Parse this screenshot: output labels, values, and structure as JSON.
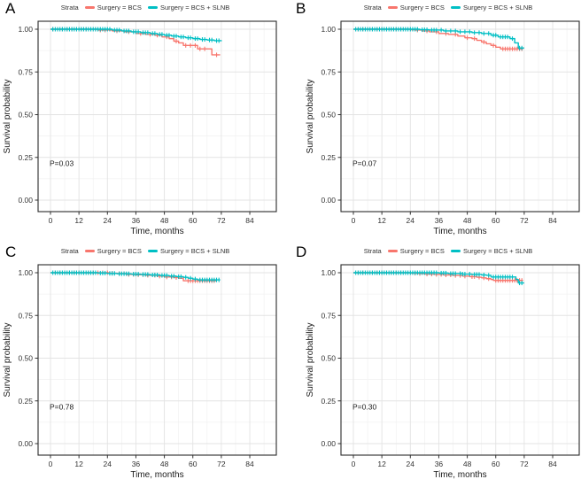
{
  "figure": {
    "background": "#ffffff"
  },
  "colors": {
    "bcs": "#F8766D",
    "slnb": "#00BFC4",
    "grid_major": "#E3E3E3",
    "grid_minor": "#F1F1F1",
    "panel_border": "#2A2A2A",
    "axis_text": "#333333",
    "title_text": "#1A1A1A"
  },
  "legend": {
    "strata_label": "Strata",
    "series": [
      {
        "label": "Surgery = BCS",
        "color": "#F8766D"
      },
      {
        "label": "Surgery = BCS + SLNB",
        "color": "#00BFC4"
      }
    ]
  },
  "axes": {
    "x_label": "Time, months",
    "y_label": "Survival probability",
    "x_ticks": [
      0,
      12,
      24,
      36,
      48,
      60,
      72,
      84
    ],
    "x_minor": [
      6,
      18,
      30,
      42,
      54,
      66,
      78,
      90
    ],
    "y_ticks": [
      {
        "label": "0.00",
        "value": 0.0
      },
      {
        "label": "0.25",
        "value": 0.25
      },
      {
        "label": "0.50",
        "value": 0.5
      },
      {
        "label": "0.75",
        "value": 0.75
      },
      {
        "label": "1.00",
        "value": 1.0
      }
    ],
    "y_minor": [
      0.125,
      0.375,
      0.625,
      0.875
    ],
    "x_range": [
      0,
      84
    ],
    "y_range": [
      0,
      1
    ],
    "grid": true,
    "legend_position": "top"
  },
  "chart_data": [
    {
      "type": "line",
      "panel": "A",
      "p_value": "P=0.03",
      "xlabel": "Time, months",
      "ylabel": "Survival probability",
      "xlim": [
        0,
        84
      ],
      "ylim": [
        0,
        1
      ],
      "series": [
        {
          "name": "Surgery = BCS",
          "color": "#F8766D",
          "x": [
            0,
            20,
            26,
            31,
            36,
            40,
            44,
            47,
            50,
            52,
            54,
            56,
            62,
            68,
            71.5
          ],
          "y": [
            1.0,
            0.995,
            0.99,
            0.985,
            0.975,
            0.97,
            0.965,
            0.955,
            0.945,
            0.93,
            0.92,
            0.905,
            0.885,
            0.85,
            0.85
          ],
          "censor_x": [
            1,
            3,
            5,
            7,
            9,
            11,
            13,
            15,
            17,
            19,
            21,
            23,
            28,
            33,
            38,
            42,
            45,
            49,
            53,
            57,
            59,
            61,
            63,
            65,
            70
          ]
        },
        {
          "name": "Surgery = BCS + SLNB",
          "color": "#00BFC4",
          "x": [
            0,
            26,
            30,
            34,
            38,
            42,
            45,
            48,
            51,
            54,
            57,
            60,
            63,
            66,
            69,
            72
          ],
          "y": [
            1.0,
            0.995,
            0.99,
            0.985,
            0.98,
            0.975,
            0.97,
            0.965,
            0.96,
            0.955,
            0.95,
            0.945,
            0.94,
            0.937,
            0.933,
            0.93
          ],
          "censor_x": [
            1,
            2,
            3,
            4,
            5,
            6,
            7,
            8,
            9,
            10,
            11,
            12,
            13,
            14,
            15,
            16,
            17,
            18,
            19,
            20,
            21,
            22,
            23,
            24,
            25,
            27,
            28,
            29,
            31,
            32,
            33,
            35,
            36,
            37,
            39,
            40,
            41,
            43,
            44,
            46,
            47,
            49,
            50,
            52,
            53,
            55,
            56,
            58,
            59,
            61,
            62,
            64,
            65,
            67,
            68,
            70,
            71
          ]
        }
      ]
    },
    {
      "type": "line",
      "panel": "B",
      "p_value": "P=0.07",
      "xlabel": "Time, months",
      "ylabel": "Survival probability",
      "xlim": [
        0,
        84
      ],
      "ylim": [
        0,
        1
      ],
      "series": [
        {
          "name": "Surgery = BCS",
          "color": "#F8766D",
          "x": [
            0,
            24,
            26,
            29,
            32,
            36,
            40,
            44,
            47,
            50,
            52,
            54,
            56,
            58,
            60,
            62,
            71.5
          ],
          "y": [
            1.0,
            0.997,
            0.995,
            0.99,
            0.985,
            0.975,
            0.97,
            0.96,
            0.95,
            0.945,
            0.935,
            0.925,
            0.915,
            0.905,
            0.895,
            0.885,
            0.885
          ],
          "censor_x": [
            2,
            4,
            6,
            8,
            10,
            12,
            14,
            16,
            18,
            20,
            22,
            27,
            31,
            35,
            39,
            43,
            48,
            51,
            55,
            59,
            63,
            64,
            65,
            66,
            67,
            68,
            69,
            70,
            71
          ]
        },
        {
          "name": "Surgery = BCS + SLNB",
          "color": "#00BFC4",
          "x": [
            0,
            28,
            32,
            38,
            44,
            50,
            54,
            58,
            61,
            66,
            68,
            69.5,
            72
          ],
          "y": [
            1.0,
            0.997,
            0.995,
            0.99,
            0.985,
            0.98,
            0.975,
            0.965,
            0.955,
            0.945,
            0.92,
            0.89,
            0.89
          ],
          "censor_x": [
            1,
            2,
            3,
            4,
            5,
            6,
            7,
            8,
            9,
            10,
            11,
            12,
            13,
            14,
            15,
            16,
            17,
            18,
            19,
            20,
            21,
            22,
            23,
            24,
            25,
            26,
            27,
            29,
            30,
            31,
            33,
            34,
            35,
            37,
            39,
            41,
            43,
            45,
            47,
            49,
            51,
            53,
            55,
            57,
            59,
            60,
            62,
            63,
            64,
            65,
            67,
            70,
            71
          ]
        }
      ]
    },
    {
      "type": "line",
      "panel": "C",
      "p_value": "P=0.78",
      "xlabel": "Time, months",
      "ylabel": "Survival probability",
      "xlim": [
        0,
        84
      ],
      "ylim": [
        0,
        1
      ],
      "series": [
        {
          "name": "Surgery = BCS",
          "color": "#F8766D",
          "x": [
            0,
            25,
            28,
            32,
            36,
            40,
            45,
            48,
            52,
            54,
            56,
            70
          ],
          "y": [
            1.0,
            0.997,
            0.995,
            0.99,
            0.988,
            0.985,
            0.98,
            0.975,
            0.972,
            0.968,
            0.953,
            0.953
          ],
          "censor_x": [
            2,
            4,
            6,
            8,
            10,
            12,
            14,
            16,
            18,
            20,
            22,
            24,
            26,
            29,
            31,
            33,
            35,
            37,
            39,
            41,
            44,
            46,
            49,
            51,
            53,
            58,
            59,
            60,
            61,
            62,
            63,
            64,
            65,
            66,
            67,
            68,
            69
          ],
          "note": ""
        },
        {
          "name": "Surgery = BCS + SLNB",
          "color": "#00BFC4",
          "x": [
            0,
            20,
            24,
            28,
            34,
            38,
            42,
            46,
            50,
            53,
            56,
            58,
            60,
            62,
            71.5
          ],
          "y": [
            1.0,
            0.998,
            0.996,
            0.994,
            0.992,
            0.99,
            0.987,
            0.984,
            0.98,
            0.977,
            0.973,
            0.968,
            0.963,
            0.958,
            0.958
          ],
          "censor_x": [
            1,
            2,
            3,
            4,
            5,
            6,
            7,
            8,
            9,
            10,
            11,
            12,
            13,
            14,
            15,
            16,
            17,
            18,
            19,
            21,
            22,
            23,
            25,
            26,
            27,
            29,
            30,
            31,
            32,
            33,
            35,
            36,
            37,
            39,
            40,
            41,
            43,
            44,
            45,
            47,
            48,
            49,
            51,
            52,
            54,
            55,
            57,
            59,
            61,
            63,
            64,
            65,
            66,
            67,
            68,
            69,
            70,
            71
          ]
        }
      ]
    },
    {
      "type": "line",
      "panel": "D",
      "p_value": "P=0.30",
      "xlabel": "Time, months",
      "ylabel": "Survival probability",
      "xlim": [
        0,
        84
      ],
      "ylim": [
        0,
        1
      ],
      "series": [
        {
          "name": "Surgery = BCS",
          "color": "#F8766D",
          "x": [
            0,
            24,
            27,
            30,
            34,
            38,
            42,
            46,
            49,
            52,
            54,
            56,
            58,
            59,
            71.5
          ],
          "y": [
            1.0,
            0.997,
            0.995,
            0.992,
            0.99,
            0.987,
            0.984,
            0.98,
            0.977,
            0.974,
            0.97,
            0.965,
            0.96,
            0.955,
            0.955
          ],
          "censor_x": [
            2,
            4,
            6,
            8,
            10,
            12,
            14,
            16,
            18,
            20,
            22,
            26,
            28,
            31,
            33,
            35,
            37,
            39,
            41,
            43,
            45,
            47,
            50,
            51,
            53,
            55,
            57,
            60,
            61,
            62,
            63,
            64,
            65,
            66,
            67,
            68,
            69,
            70,
            71
          ]
        },
        {
          "name": "Surgery = BCS + SLNB",
          "color": "#00BFC4",
          "x": [
            0,
            36,
            40,
            46,
            50,
            54,
            56,
            58,
            68.5,
            69.5,
            72
          ],
          "y": [
            1.0,
            0.998,
            0.995,
            0.992,
            0.99,
            0.987,
            0.985,
            0.975,
            0.96,
            0.94,
            0.94
          ],
          "censor_x": [
            1,
            2,
            3,
            4,
            5,
            6,
            7,
            8,
            9,
            10,
            11,
            12,
            13,
            14,
            15,
            16,
            17,
            18,
            19,
            20,
            21,
            22,
            23,
            24,
            25,
            26,
            27,
            28,
            29,
            30,
            31,
            32,
            33,
            34,
            35,
            37,
            38,
            39,
            41,
            42,
            43,
            45,
            46,
            47,
            49,
            51,
            52,
            53,
            55,
            57,
            59,
            60,
            61,
            62,
            63,
            64,
            65,
            66,
            67,
            70,
            71
          ]
        }
      ]
    }
  ]
}
